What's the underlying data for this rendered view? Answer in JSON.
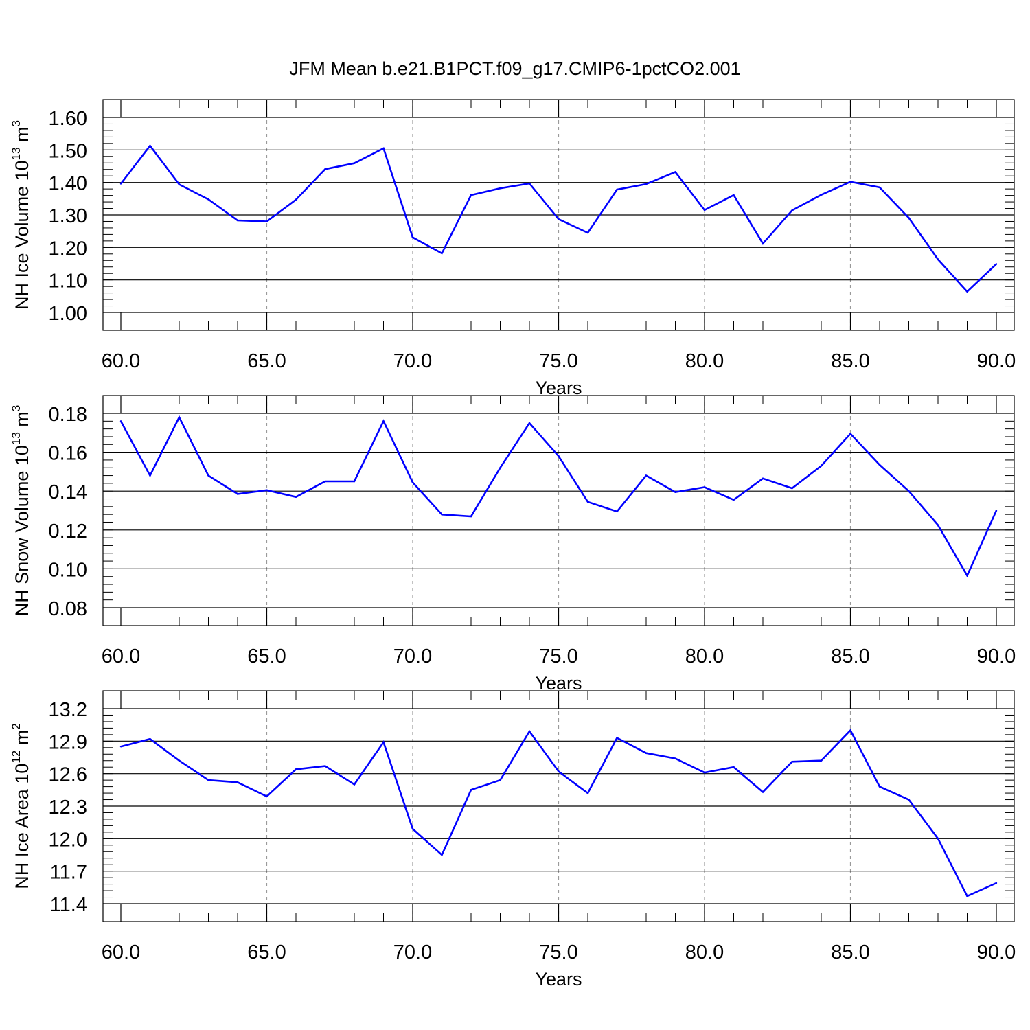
{
  "title": "JFM Mean b.e21.B1PCT.f09_g17.CMIP6-1pctCO2.001",
  "line_color": "#0000ff",
  "chart_data": [
    {
      "type": "line",
      "ylabel": {
        "text": "NH Ice Volume 10",
        "sup": "13",
        "text2": " m",
        "sup2": "3"
      },
      "xlabel": "Years",
      "xlim": [
        60,
        90
      ],
      "ylim": [
        1.0,
        1.6
      ],
      "x_ticks": [
        "60.0",
        "65.0",
        "70.0",
        "75.0",
        "80.0",
        "85.0",
        "90.0"
      ],
      "x_tick_values": [
        60,
        65,
        70,
        75,
        80,
        85,
        90
      ],
      "y_ticks": [
        "1.00",
        "1.10",
        "1.20",
        "1.30",
        "1.40",
        "1.50",
        "1.60"
      ],
      "y_tick_values": [
        1.0,
        1.1,
        1.2,
        1.3,
        1.4,
        1.5,
        1.6
      ],
      "y_minor_step": 0.02,
      "grid": "vertical dashed at major x ticks",
      "x": [
        60,
        61,
        62,
        63,
        64,
        65,
        66,
        67,
        68,
        69,
        70,
        71,
        72,
        73,
        74,
        75,
        76,
        77,
        78,
        79,
        80,
        81,
        82,
        83,
        84,
        85,
        86,
        87,
        88,
        89,
        90
      ],
      "y": [
        1.396,
        1.513,
        1.394,
        1.348,
        1.283,
        1.28,
        1.347,
        1.441,
        1.459,
        1.505,
        1.231,
        1.182,
        1.361,
        1.382,
        1.397,
        1.287,
        1.245,
        1.378,
        1.395,
        1.432,
        1.315,
        1.361,
        1.212,
        1.314,
        1.362,
        1.402,
        1.385,
        1.291,
        1.163,
        1.064,
        1.149
      ]
    },
    {
      "type": "line",
      "ylabel": {
        "text": "NH Snow Volume 10",
        "sup": "13",
        "text2": " m",
        "sup2": "3"
      },
      "xlabel": "Years",
      "xlim": [
        60,
        90
      ],
      "ylim": [
        0.08,
        0.18
      ],
      "x_ticks": [
        "60.0",
        "65.0",
        "70.0",
        "75.0",
        "80.0",
        "85.0",
        "90.0"
      ],
      "x_tick_values": [
        60,
        65,
        70,
        75,
        80,
        85,
        90
      ],
      "y_ticks": [
        "0.08",
        "0.10",
        "0.12",
        "0.14",
        "0.16",
        "0.18"
      ],
      "y_tick_values": [
        0.08,
        0.1,
        0.12,
        0.14,
        0.16,
        0.18
      ],
      "y_minor_step": 0.004,
      "grid": "vertical dashed at major x ticks",
      "x": [
        60,
        61,
        62,
        63,
        64,
        65,
        66,
        67,
        68,
        69,
        70,
        71,
        72,
        73,
        74,
        75,
        76,
        77,
        78,
        79,
        80,
        81,
        82,
        83,
        84,
        85,
        86,
        87,
        88,
        89,
        90
      ],
      "y": [
        0.176,
        0.148,
        0.178,
        0.148,
        0.1385,
        0.1405,
        0.137,
        0.145,
        0.145,
        0.176,
        0.1445,
        0.128,
        0.127,
        0.152,
        0.175,
        0.158,
        0.1345,
        0.1295,
        0.148,
        0.1395,
        0.142,
        0.1355,
        0.1465,
        0.1415,
        0.153,
        0.1695,
        0.1535,
        0.14,
        0.1225,
        0.0965,
        0.13
      ]
    },
    {
      "type": "line",
      "ylabel": {
        "text": "NH Ice Area 10",
        "sup": "12",
        "text2": " m",
        "sup2": "2"
      },
      "xlabel": "Years",
      "xlim": [
        60,
        90
      ],
      "ylim": [
        11.4,
        13.2
      ],
      "x_ticks": [
        "60.0",
        "65.0",
        "70.0",
        "75.0",
        "80.0",
        "85.0",
        "90.0"
      ],
      "x_tick_values": [
        60,
        65,
        70,
        75,
        80,
        85,
        90
      ],
      "y_ticks": [
        "11.4",
        "11.7",
        "12.0",
        "12.3",
        "12.6",
        "12.9",
        "13.2"
      ],
      "y_tick_values": [
        11.4,
        11.7,
        12.0,
        12.3,
        12.6,
        12.9,
        13.2
      ],
      "y_minor_step": 0.06,
      "grid": "vertical dashed at major x ticks",
      "x": [
        60,
        61,
        62,
        63,
        64,
        65,
        66,
        67,
        68,
        69,
        70,
        71,
        72,
        73,
        74,
        75,
        76,
        77,
        78,
        79,
        80,
        81,
        82,
        83,
        84,
        85,
        86,
        87,
        88,
        89,
        90
      ],
      "y": [
        12.85,
        12.92,
        12.72,
        12.54,
        12.52,
        12.39,
        12.64,
        12.67,
        12.5,
        12.89,
        12.09,
        11.85,
        12.45,
        12.54,
        12.99,
        12.62,
        12.42,
        12.93,
        12.79,
        12.74,
        12.61,
        12.66,
        12.43,
        12.71,
        12.72,
        13.0,
        12.48,
        12.36,
        12.0,
        11.47,
        11.59
      ]
    }
  ]
}
